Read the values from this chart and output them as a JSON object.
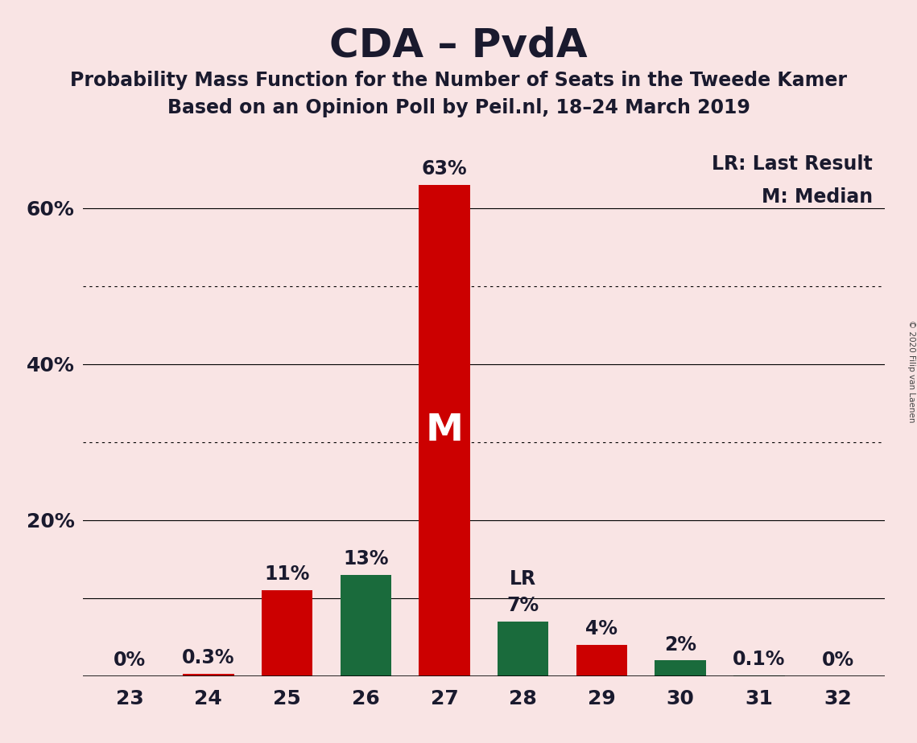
{
  "title": "CDA – PvdA",
  "subtitle1": "Probability Mass Function for the Number of Seats in the Tweede Kamer",
  "subtitle2": "Based on an Opinion Poll by Peil.nl, 18–24 March 2019",
  "copyright": "© 2020 Filip van Laenen",
  "categories": [
    23,
    24,
    25,
    26,
    27,
    28,
    29,
    30,
    31,
    32
  ],
  "values": [
    0.0,
    0.3,
    11.0,
    13.0,
    63.0,
    7.0,
    4.0,
    2.0,
    0.1,
    0.0
  ],
  "colors": [
    "#cc0000",
    "#cc0000",
    "#cc0000",
    "#1a6b3c",
    "#cc0000",
    "#1a6b3c",
    "#cc0000",
    "#1a6b3c",
    "#1a6b3c",
    "#cc0000"
  ],
  "bar_labels": [
    "0%",
    "0.3%",
    "11%",
    "13%",
    "63%",
    "7%",
    "4%",
    "2%",
    "0.1%",
    "0%"
  ],
  "median_bar": 4,
  "lr_bar": 5,
  "ylim": [
    0,
    70
  ],
  "background_color": "#f9e4e4",
  "title_fontsize": 36,
  "subtitle_fontsize": 17,
  "axis_label_fontsize": 18,
  "bar_label_fontsize": 17,
  "legend_fontsize": 17,
  "lr_label": "LR",
  "median_label": "M",
  "legend_lr": "LR: Last Result",
  "legend_m": "M: Median",
  "solid_gridlines": [
    10,
    20,
    40,
    60
  ],
  "dotted_gridlines": [
    30,
    50
  ]
}
